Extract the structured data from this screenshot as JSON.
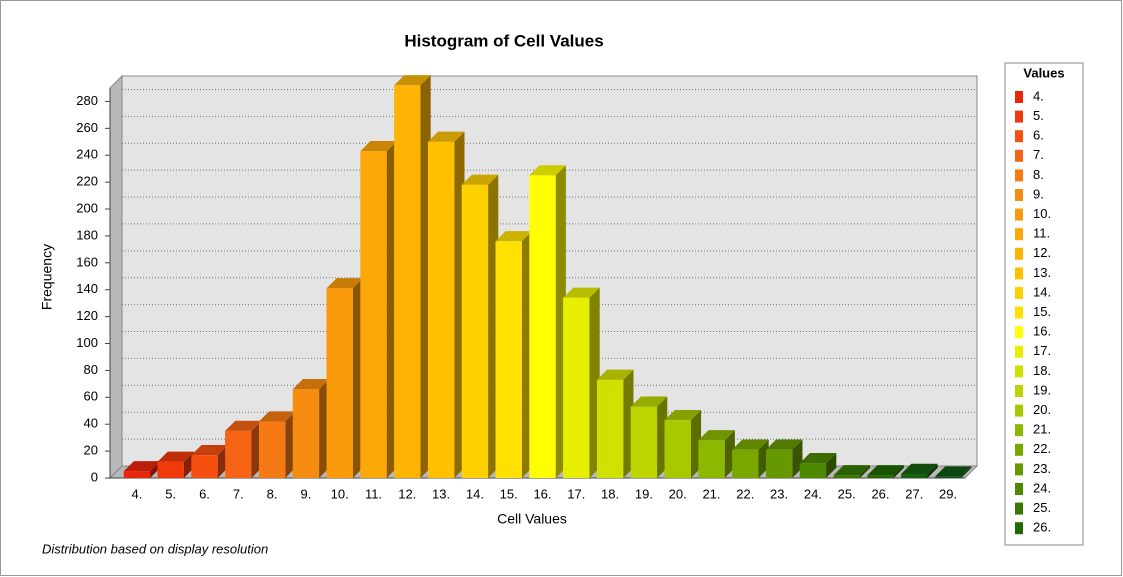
{
  "chart_data": {
    "type": "bar",
    "title": "Histogram of Cell Values",
    "subtitle": "Distribution based on display resolution",
    "x_label": "Cell Values",
    "y_label": "Frequency",
    "categories": [
      "4.",
      "5.",
      "6.",
      "7.",
      "8.",
      "9.",
      "10.",
      "11.",
      "12.",
      "13.",
      "14.",
      "15.",
      "16.",
      "17.",
      "18.",
      "19.",
      "20.",
      "21.",
      "22.",
      "23.",
      "24.",
      "25.",
      "26.",
      "27.",
      "29."
    ],
    "values": [
      5,
      12,
      17,
      35,
      42,
      66,
      141,
      243,
      292,
      250,
      218,
      176,
      225,
      134,
      73,
      53,
      43,
      28,
      21,
      21,
      11,
      2,
      2,
      3,
      1
    ],
    "colors": [
      "#e8260a",
      "#f03a0a",
      "#f55010",
      "#f56414",
      "#f57a14",
      "#f58c10",
      "#fa9a0a",
      "#fca808",
      "#fdb405",
      "#ffc000",
      "#ffd000",
      "#ffe000",
      "#ffff00",
      "#e8ee00",
      "#d0e000",
      "#bcd400",
      "#a8c800",
      "#8cb800",
      "#78a800",
      "#669800",
      "#4c8800",
      "#387800",
      "#206800",
      "#186010",
      "#105818"
    ],
    "ylim": [
      0,
      290
    ],
    "yticks": [
      0,
      20,
      40,
      60,
      80,
      100,
      120,
      140,
      160,
      180,
      200,
      220,
      240,
      260,
      280
    ],
    "grid": true,
    "legend": {
      "title": "Values",
      "position": "right",
      "items": [
        "4.",
        "5.",
        "6.",
        "7.",
        "8.",
        "9.",
        "10.",
        "11.",
        "12.",
        "13.",
        "14.",
        "15.",
        "16.",
        "17.",
        "18.",
        "19.",
        "20.",
        "21.",
        "22.",
        "23.",
        "24.",
        "25.",
        "26."
      ]
    }
  }
}
